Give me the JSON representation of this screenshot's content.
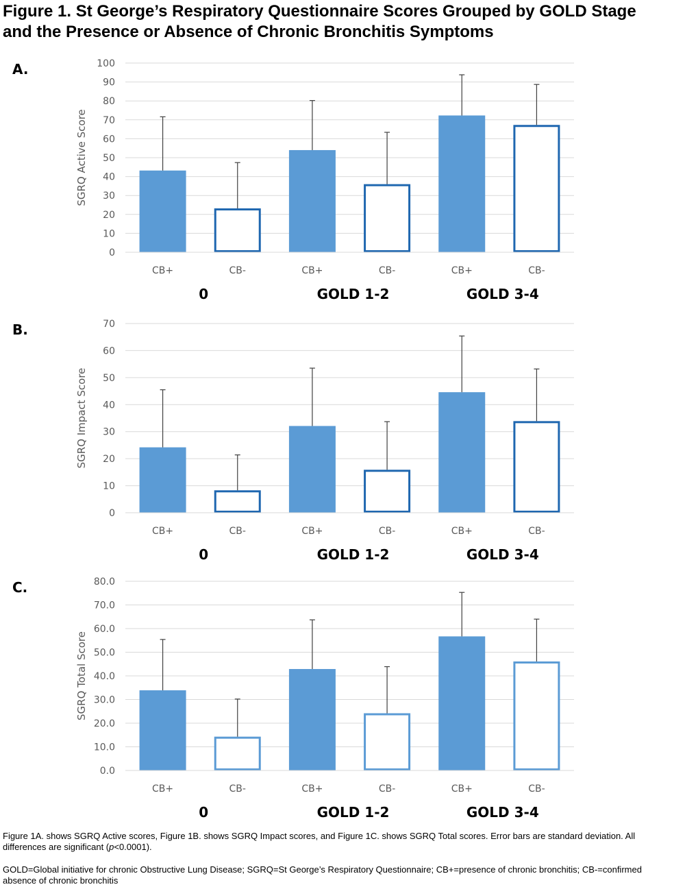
{
  "figure": {
    "title_line1": "Figure 1. St George’s Respiratory Questionnaire Scores Grouped by GOLD Stage",
    "title_line2": "and the Presence or Absence of Chronic Bronchitis Symptoms",
    "caption1_a": "Figure 1A. shows SGRQ Active scores, Figure 1B. shows SGRQ Impact scores, and Figure 1C. shows SGRQ Total scores.  Error bars are standard deviation.  All differences are significant (",
    "caption1_p": "p",
    "caption1_b": "<0.0001).",
    "caption2": "GOLD=Global initiative for chronic Obstructive Lung Disease; SGRQ=St George’s Respiratory Questionnaire; CB+=presence of chronic bronchitis; CB-=confirmed absence of chronic bronchitis"
  },
  "colors": {
    "filled": "#5b9bd5",
    "outline_dark": "#1f67b0",
    "outline_light": "#5b9bd5",
    "grid": "#d9d9d9",
    "error": "#404040"
  },
  "chart_data": [
    {
      "type": "bar",
      "panel_label": "A.",
      "ylabel": "SGRQ Active Score",
      "ylim": [
        0,
        100
      ],
      "yticks": [
        0,
        10,
        20,
        30,
        40,
        50,
        60,
        70,
        80,
        90,
        100
      ],
      "tick_decimals": 0,
      "grid": true,
      "categories": [
        "CB+",
        "CB-",
        "CB+",
        "CB-",
        "CB+",
        "CB-"
      ],
      "groups": [
        "0",
        "GOLD 1-2",
        "GOLD 3-4"
      ],
      "values": [
        43.2,
        23.2,
        54.0,
        36.0,
        72.3,
        67.3
      ],
      "errors": [
        28.4,
        24.2,
        26.2,
        27.4,
        21.5,
        21.4
      ],
      "styles": [
        "filled",
        "outline",
        "filled",
        "outline",
        "filled",
        "outline"
      ]
    },
    {
      "type": "bar",
      "panel_label": "B.",
      "ylabel": "SGRQ Impact Score",
      "ylim": [
        0,
        70
      ],
      "yticks": [
        0,
        10,
        20,
        30,
        40,
        50,
        60,
        70
      ],
      "tick_decimals": 0,
      "grid": true,
      "categories": [
        "CB+",
        "CB-",
        "CB+",
        "CB-",
        "CB+",
        "CB-"
      ],
      "groups": [
        "0",
        "GOLD 1-2",
        "GOLD 3-4"
      ],
      "values": [
        24.2,
        8.3,
        32.1,
        15.9,
        44.6,
        33.9
      ],
      "errors": [
        21.3,
        13.1,
        21.4,
        17.8,
        20.8,
        19.3
      ],
      "styles": [
        "filled",
        "outline",
        "filled",
        "outline",
        "filled",
        "outline"
      ]
    },
    {
      "type": "bar",
      "panel_label": "C.",
      "ylabel": "SGRQ Total Score",
      "ylim": [
        0,
        80
      ],
      "yticks": [
        0,
        10,
        20,
        30,
        40,
        50,
        60,
        70,
        80
      ],
      "tick_decimals": 1,
      "grid": true,
      "categories": [
        "CB+",
        "CB-",
        "CB+",
        "CB-",
        "CB+",
        "CB-"
      ],
      "groups": [
        "0",
        "GOLD 1-2",
        "GOLD 3-4"
      ],
      "values": [
        33.9,
        14.3,
        42.9,
        24.2,
        56.7,
        46.1
      ],
      "errors": [
        21.5,
        15.9,
        20.8,
        19.7,
        18.6,
        17.9
      ],
      "styles": [
        "filled",
        "outline-light",
        "filled",
        "outline-light",
        "filled",
        "outline-light"
      ]
    }
  ]
}
